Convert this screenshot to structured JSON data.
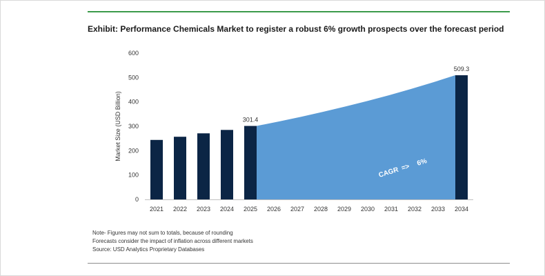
{
  "title": "Exhibit: Performance Chemicals Market to register a robust 6% growth prospects over the forecast period",
  "chart_data": {
    "type": "bar",
    "title": "Exhibit: Performance Chemicals Market to register a robust 6% growth prospects over the forecast period",
    "xlabel": "",
    "ylabel": "Market Size (USD Billion)",
    "ylim": [
      0,
      600
    ],
    "yticks": [
      0,
      100,
      200,
      300,
      400,
      500,
      600
    ],
    "grid": false,
    "categories": [
      "2021",
      "2022",
      "2023",
      "2024",
      "2025",
      "2026",
      "2027",
      "2028",
      "2029",
      "2030",
      "2031",
      "2032",
      "2033",
      "2034"
    ],
    "bars": [
      {
        "year": "2021",
        "value": 244
      },
      {
        "year": "2022",
        "value": 257
      },
      {
        "year": "2023",
        "value": 271
      },
      {
        "year": "2024",
        "value": 285
      },
      {
        "year": "2025",
        "value": 301.4,
        "label": "301.4"
      },
      {
        "year": "2034",
        "value": 509.3,
        "label": "509.3"
      }
    ],
    "forecast_area": {
      "from": "2025",
      "to": "2034",
      "values": [
        301.4,
        319.5,
        338.7,
        359.0,
        380.5,
        403.3,
        427.5,
        453.2,
        480.4,
        509.3
      ],
      "annotation_text": "CAGR",
      "annotation_arrow": "=>",
      "annotation_value": "6%"
    },
    "colors": {
      "bar": "#0b2545",
      "area": "#5b9bd5",
      "annotation_text": "#ffffff"
    }
  },
  "notes": [
    "Note- Figures may not sum to totals, because of rounding",
    "Forecasts consider the impact of inflation across different markets",
    "Source: USD Analytics Proprietary Databases"
  ]
}
